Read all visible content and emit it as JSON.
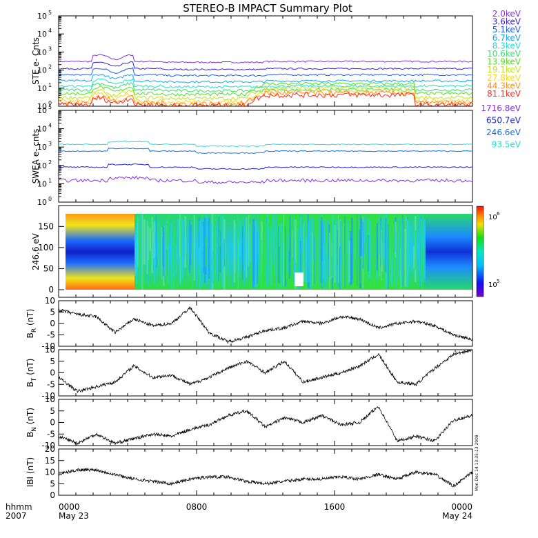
{
  "title": "STEREO-B IMPACT Summary Plot",
  "footer": {
    "time_label": "hhmm",
    "year_label": "2007",
    "date_start": "May 23",
    "date_end": "May 24",
    "stamp": "Mon Dec 14 13:35:13 2008"
  },
  "colors": {
    "ste": [
      "#8a2be2",
      "#3a1fd0",
      "#1a5fe8",
      "#16a4f0",
      "#20e0d8",
      "#30e36a",
      "#4ee31a",
      "#c2e51a",
      "#ffd21a",
      "#ff8c1a",
      "#ff2a1a"
    ],
    "swea": [
      "#8a2be2",
      "#2020d0",
      "#0f6fe8",
      "#20e0d8"
    ]
  },
  "chart_data": [
    {
      "type": "line",
      "id": "ste",
      "ylabel": "STE e- Cnts",
      "yscale": "log",
      "ylim": [
        1,
        100000
      ],
      "yticks": [
        "10^0",
        "10^1",
        "10^2",
        "10^3",
        "10^4",
        "10^5"
      ],
      "xlim": [
        "0000 May 23",
        "0000 May 24"
      ],
      "legend_placement": "right",
      "series": [
        {
          "name": "2.0keV",
          "baseline": 300
        },
        {
          "name": "3.6keV",
          "baseline": 120
        },
        {
          "name": "5.1keV",
          "baseline": 55
        },
        {
          "name": "6.7keV",
          "baseline": 25
        },
        {
          "name": "8.3keV",
          "baseline": 13
        },
        {
          "name": "10.6keV",
          "baseline": 8
        },
        {
          "name": "13.9keV",
          "baseline": 5
        },
        {
          "name": "19.1keV",
          "baseline": 3
        },
        {
          "name": "27.8keV",
          "baseline": 2
        },
        {
          "name": "44.3keV",
          "baseline": 1.5
        },
        {
          "name": "81.1keV",
          "baseline": 1.2
        }
      ]
    },
    {
      "type": "line",
      "id": "swea",
      "ylabel": "SWEA e- cnts",
      "yscale": "log",
      "ylim": [
        1,
        100000
      ],
      "yticks": [
        "10^0",
        "10^1",
        "10^2",
        "10^3",
        "10^4",
        "10^5"
      ],
      "legend_placement": "right",
      "series": [
        {
          "name": "1716.8eV",
          "baseline": 15
        },
        {
          "name": "650.7eV",
          "baseline": 80
        },
        {
          "name": "246.6eV",
          "baseline": 600
        },
        {
          "name": "93.5eV",
          "baseline": 1400
        }
      ]
    },
    {
      "type": "heatmap",
      "id": "pad",
      "ylabel": "246.6 eV",
      "ylim": [
        0,
        180
      ],
      "yticks": [
        0,
        50,
        100,
        150
      ],
      "colorbar": {
        "scale": "log",
        "min": 100000,
        "max": 1000000,
        "ticks": [
          "10^5",
          "10^6"
        ]
      }
    },
    {
      "type": "line",
      "id": "br",
      "ylabel": "BR (nT)",
      "ylim": [
        -10,
        10
      ],
      "yticks": [
        -10,
        -5,
        0,
        5,
        10
      ],
      "values": [
        6,
        4,
        3,
        -4,
        2,
        -1,
        0,
        7,
        -4,
        -8,
        -6,
        -3,
        -2,
        1,
        0,
        3,
        2,
        -2,
        0,
        1,
        -1,
        -5,
        -7
      ]
    },
    {
      "type": "line",
      "id": "bt",
      "ylabel": "BT (nT)",
      "ylim": [
        -10,
        10
      ],
      "yticks": [
        -10,
        -5,
        0,
        5,
        10
      ],
      "values": [
        -2,
        -8,
        -6,
        -4,
        3,
        -2,
        -1,
        -5,
        -2,
        2,
        5,
        0,
        5,
        -4,
        -2,
        0,
        3,
        8,
        -4,
        -5,
        2,
        8,
        10
      ]
    },
    {
      "type": "line",
      "id": "bn",
      "ylabel": "BN (nT)",
      "ylim": [
        -10,
        10
      ],
      "yticks": [
        -10,
        -5,
        0,
        5,
        10
      ],
      "values": [
        -6,
        -9,
        -5,
        -9,
        -7,
        -5,
        -6,
        -3,
        -1,
        3,
        5,
        -2,
        2,
        0,
        3,
        -1,
        0,
        7,
        -8,
        -6,
        -8,
        1,
        3
      ]
    },
    {
      "type": "line",
      "id": "bmag",
      "ylabel": "IBI (nT)",
      "ylim": [
        0,
        20
      ],
      "yticks": [
        0,
        5,
        10,
        15,
        20
      ],
      "values": [
        9,
        11,
        11,
        9,
        7,
        6,
        5,
        7,
        8,
        8,
        6,
        5,
        6,
        7,
        7,
        8,
        7,
        9,
        7,
        10,
        9,
        4,
        10
      ],
      "xticks": [
        "0000",
        "0800",
        "1600",
        "0000"
      ]
    }
  ]
}
